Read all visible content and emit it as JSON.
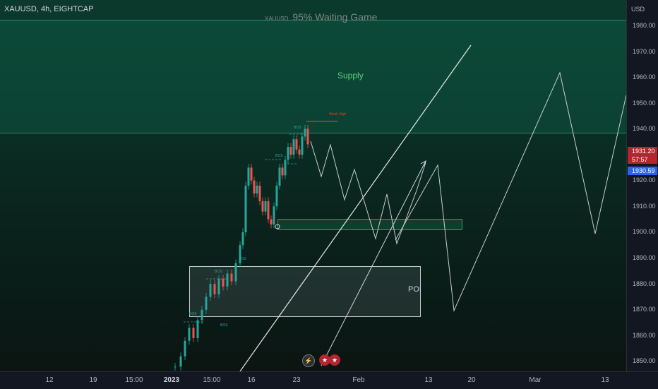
{
  "header": {
    "symbol": "XAUUSD, 4h, EIGHTCAP",
    "watermark_symbol": "XAUUSD",
    "watermark_title": "95% Waiting Game"
  },
  "zones": {
    "supply_label": "Supply",
    "poi_label": "POI",
    "weak_high_label": "Weak High",
    "bos_label": "BOS"
  },
  "price_axis": {
    "currency": "USD",
    "ticks": [
      "1980.00",
      "1970.00",
      "1960.00",
      "1950.00",
      "1940.00",
      "1920.00",
      "1910.00",
      "1900.00",
      "1890.00",
      "1880.00",
      "1870.00",
      "1860.00",
      "1850.00"
    ],
    "current_price": "1931.20",
    "countdown": "57:57",
    "bid_price": "1930.59"
  },
  "time_axis": {
    "ticks": [
      "12",
      "19",
      "15:00",
      "2023",
      "15:00",
      "16",
      "23",
      "Feb",
      "13",
      "20",
      "Mar",
      "13"
    ]
  },
  "colors": {
    "supply": "#2f8a5f",
    "up_candle": "#26a69a",
    "down_candle": "#ef5350",
    "current_price_tag": "#b2262d",
    "bid_tag": "#2962ff"
  },
  "icons": [
    "lightning-icon",
    "us-flag-icon",
    "us-flag-icon"
  ]
}
